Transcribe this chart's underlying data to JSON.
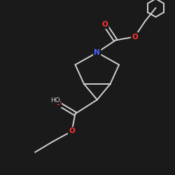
{
  "background_color": "#1a1a1a",
  "bond_color": "#d0d0d0",
  "atom_colors": {
    "N": "#4466ff",
    "O": "#ff3333",
    "C": "#d0d0d0"
  },
  "figsize": [
    2.5,
    2.5
  ],
  "dpi": 100,
  "xlim": [
    0,
    10
  ],
  "ylim": [
    0,
    10
  ]
}
